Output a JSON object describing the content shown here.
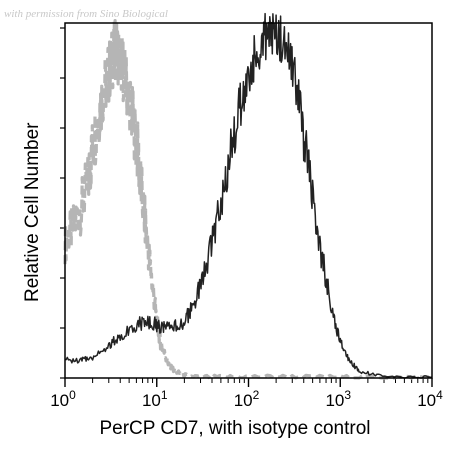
{
  "watermark": "with permission from Sino Biological",
  "chart_data": {
    "type": "line",
    "title": "",
    "xlabel": "PerCP CD7, with isotype control",
    "ylabel": "Relative Cell Number",
    "x_scale": "log",
    "xlim": [
      1,
      10000
    ],
    "ylim": [
      0,
      1
    ],
    "x_ticks": [
      {
        "value": 1,
        "base": "10",
        "exp": "0"
      },
      {
        "value": 10,
        "base": "10",
        "exp": "1"
      },
      {
        "value": 100,
        "base": "10",
        "exp": "2"
      },
      {
        "value": 1000,
        "base": "10",
        "exp": "3"
      },
      {
        "value": 10000,
        "base": "10",
        "exp": "4"
      }
    ],
    "series": [
      {
        "name": "",
        "style": "dashed",
        "color": "#b5b5b5",
        "points": [
          [
            1.0,
            0.38
          ],
          [
            1.2,
            0.42
          ],
          [
            1.5,
            0.48
          ],
          [
            1.8,
            0.56
          ],
          [
            2.0,
            0.65
          ],
          [
            2.3,
            0.73
          ],
          [
            2.6,
            0.8
          ],
          [
            3.0,
            0.86
          ],
          [
            3.3,
            0.9
          ],
          [
            3.6,
            0.93
          ],
          [
            4.0,
            0.9
          ],
          [
            4.4,
            0.86
          ],
          [
            5.0,
            0.79
          ],
          [
            5.6,
            0.71
          ],
          [
            6.3,
            0.62
          ],
          [
            7.0,
            0.5
          ],
          [
            8.0,
            0.37
          ],
          [
            9.0,
            0.26
          ],
          [
            10,
            0.16
          ],
          [
            11,
            0.1
          ],
          [
            12.5,
            0.06
          ],
          [
            14,
            0.03
          ],
          [
            17,
            0.015
          ],
          [
            22,
            0.005
          ],
          [
            40,
            0.003
          ],
          [
            100,
            0.004
          ],
          [
            300,
            0.004
          ],
          [
            1000,
            0.003
          ],
          [
            3000,
            0.002
          ],
          [
            10000,
            0.002
          ]
        ]
      },
      {
        "name": "",
        "style": "solid",
        "color": "#222222",
        "points": [
          [
            1.0,
            0.05
          ],
          [
            1.5,
            0.05
          ],
          [
            2.0,
            0.06
          ],
          [
            3.0,
            0.09
          ],
          [
            4.0,
            0.12
          ],
          [
            6.0,
            0.15
          ],
          [
            8.0,
            0.16
          ],
          [
            10,
            0.15
          ],
          [
            12,
            0.14
          ],
          [
            15,
            0.14
          ],
          [
            20,
            0.16
          ],
          [
            25,
            0.2
          ],
          [
            32,
            0.28
          ],
          [
            40,
            0.38
          ],
          [
            50,
            0.5
          ],
          [
            63,
            0.63
          ],
          [
            80,
            0.76
          ],
          [
            100,
            0.85
          ],
          [
            125,
            0.92
          ],
          [
            160,
            0.97
          ],
          [
            200,
            0.98
          ],
          [
            250,
            0.94
          ],
          [
            320,
            0.84
          ],
          [
            400,
            0.68
          ],
          [
            500,
            0.5
          ],
          [
            630,
            0.34
          ],
          [
            800,
            0.2
          ],
          [
            1000,
            0.1
          ],
          [
            1260,
            0.05
          ],
          [
            1600,
            0.02
          ],
          [
            2500,
            0.007
          ],
          [
            5000,
            0.003
          ],
          [
            10000,
            0.002
          ]
        ]
      }
    ]
  }
}
